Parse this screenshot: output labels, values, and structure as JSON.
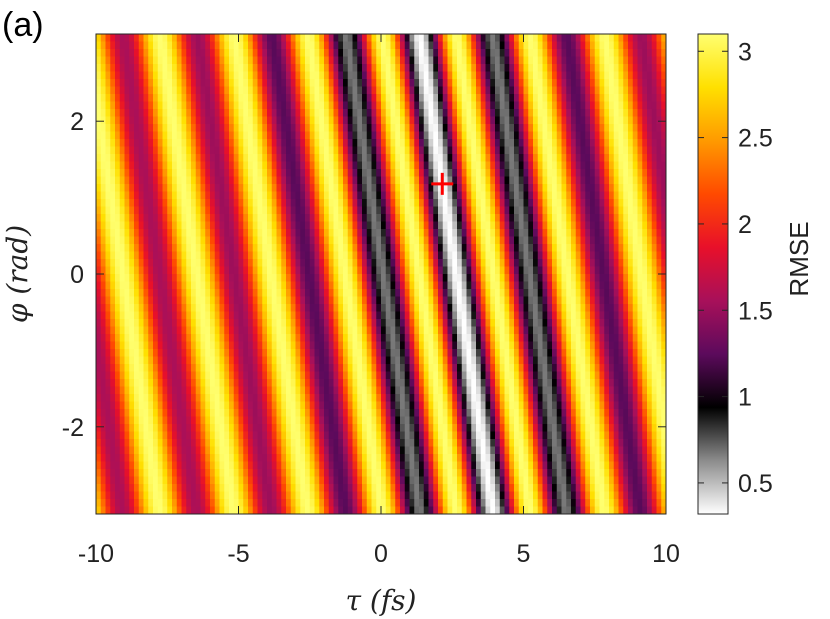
{
  "panel_label": "(a)",
  "chart_data": {
    "type": "heatmap",
    "xlabel": "τ (fs)",
    "ylabel": "φ (rad)",
    "xlim": [
      -10,
      10
    ],
    "ylim": [
      -3.1416,
      3.1416
    ],
    "x_ticks": [
      -10,
      -5,
      0,
      5,
      10
    ],
    "x_tick_labels": [
      "-10",
      "-5",
      "0",
      "5",
      "10"
    ],
    "y_ticks": [
      -2,
      0,
      2
    ],
    "y_tick_labels": [
      "-2",
      "0",
      "2"
    ],
    "colorbar": {
      "label": "RMSE",
      "range": [
        0.32,
        3.1
      ],
      "ticks": [
        0.5,
        1,
        1.5,
        2,
        2.5,
        3
      ],
      "tick_labels": [
        "0.5",
        "1",
        "1.5",
        "2",
        "2.5",
        "3"
      ],
      "colormap": "gray-to-inferno",
      "colors": [
        "#ffffff",
        "#8c8c8c",
        "#000000",
        "#5c0a5c",
        "#a8105a",
        "#e8102a",
        "#ff4a00",
        "#ff9a00",
        "#ffe000",
        "#ffff70"
      ]
    },
    "grid": false,
    "field_model": {
      "description": "RMSE varies periodically along stripes tilted in the tau-phi plane",
      "stripe_period_fs": 2.6,
      "stripe_phase_slope_fs_per_rad": -0.414,
      "min_at_tau_fs": 2.15,
      "envelope_width_fs": 3.2,
      "max_value": 3.1,
      "min_value": 0.32
    },
    "marker": {
      "tau": 2.15,
      "phi": 1.18,
      "symbol": "+",
      "color": "#ff0000"
    }
  }
}
